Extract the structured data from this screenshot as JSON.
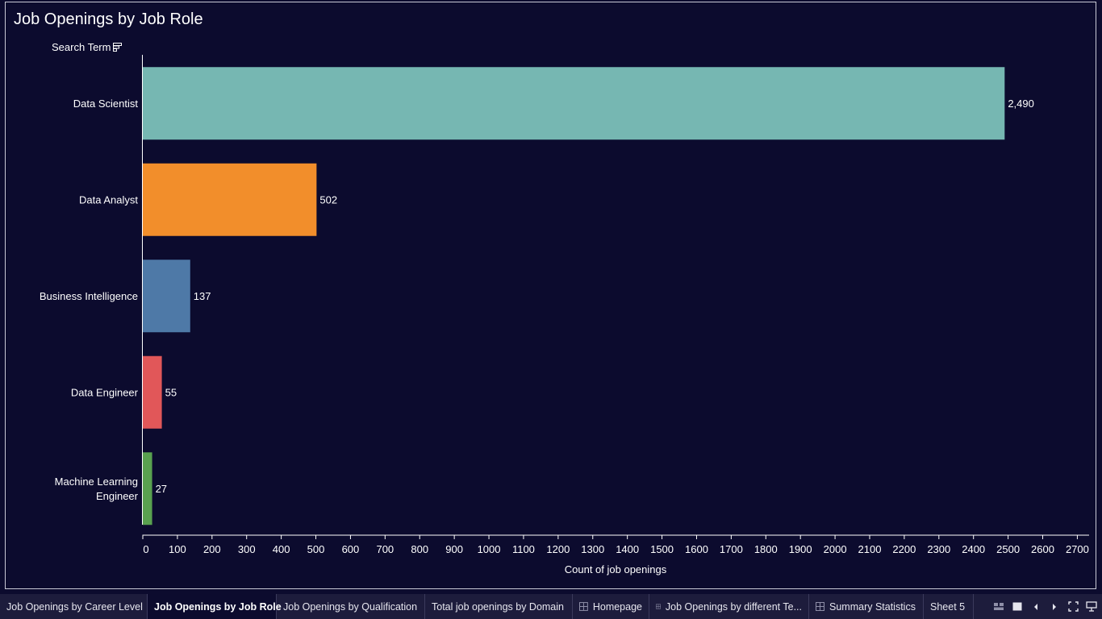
{
  "chart_title": "Job Openings by Job Role",
  "field_label": "Search Term",
  "chart_data": {
    "type": "bar",
    "orientation": "horizontal",
    "title": "Job Openings by Job Role",
    "ylabel": "Search Term",
    "xlabel": "Count of job openings",
    "categories": [
      "Data Scientist",
      "Data Analyst",
      "Business Intelligence",
      "Data Engineer",
      "Machine Learning Engineer"
    ],
    "category_lines": [
      [
        "Data Scientist"
      ],
      [
        "Data Analyst"
      ],
      [
        "Business Intelligence"
      ],
      [
        "Data Engineer"
      ],
      [
        "Machine Learning",
        "Engineer"
      ]
    ],
    "values": [
      2490,
      502,
      137,
      55,
      27
    ],
    "value_labels": [
      "2,490",
      "502",
      "137",
      "55",
      "27"
    ],
    "colors": [
      "#76b7b2",
      "#f28e2b",
      "#4e79a7",
      "#e15759",
      "#59a14f"
    ],
    "xlim": [
      0,
      2720
    ],
    "xticks": [
      0,
      100,
      200,
      300,
      400,
      500,
      600,
      700,
      800,
      900,
      1000,
      1100,
      1200,
      1300,
      1400,
      1500,
      1600,
      1700,
      1800,
      1900,
      2000,
      2100,
      2200,
      2300,
      2400,
      2500,
      2600,
      2700
    ],
    "grid": false
  },
  "tabs": [
    {
      "label": "Job Openings by Career Level",
      "active": false,
      "icon": ""
    },
    {
      "label": "Job Openings by Job Role",
      "active": true,
      "icon": ""
    },
    {
      "label": "Job Openings by Qualification",
      "active": false,
      "icon": ""
    },
    {
      "label": "Total job openings by Domain",
      "active": false,
      "icon": ""
    },
    {
      "label": "Homepage",
      "active": false,
      "icon": "dashboard-grid-icon"
    },
    {
      "label": "Job Openings by different Te...",
      "active": false,
      "icon": "dashboard-grid-icon"
    },
    {
      "label": "Summary Statistics",
      "active": false,
      "icon": "dashboard-grid-icon"
    },
    {
      "label": "Sheet 5",
      "active": false,
      "icon": ""
    }
  ],
  "controls": [
    "show-filmstrip-icon",
    "show-tabs-icon",
    "previous-sheet-icon",
    "next-sheet-icon",
    "fullscreen-icon",
    "presentation-mode-icon"
  ]
}
